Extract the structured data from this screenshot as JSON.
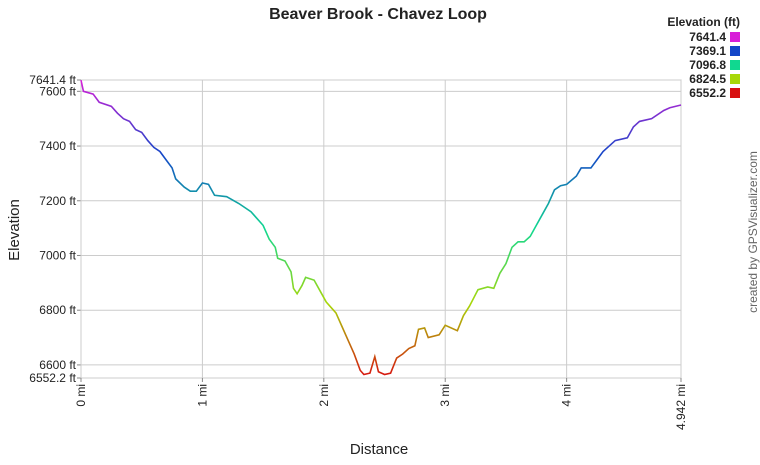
{
  "chart_data": {
    "type": "line",
    "title": "Beaver Brook - Chavez Loop",
    "x_label": "Distance",
    "y_label": "Elevation",
    "credit": "created by GPSVisualizer.com",
    "legend": {
      "title": "Elevation (ft)",
      "position": "top-right",
      "entries": [
        {
          "value": 7641.4,
          "color": "#d81ed8"
        },
        {
          "value": 7369.1,
          "color": "#1446c8"
        },
        {
          "value": 7096.8,
          "color": "#10d890"
        },
        {
          "value": 6824.5,
          "color": "#a8d808"
        },
        {
          "value": 6552.2,
          "color": "#d81010"
        }
      ]
    },
    "grid": true,
    "xlim": [
      0,
      4.942
    ],
    "ylim": [
      6552.2,
      7641.4
    ],
    "xticks": [
      {
        "value": 0,
        "label": "0 mi"
      },
      {
        "value": 1,
        "label": "1 mi"
      },
      {
        "value": 2,
        "label": "2 mi"
      },
      {
        "value": 3,
        "label": "3 mi"
      },
      {
        "value": 4,
        "label": "4 mi"
      },
      {
        "value": 4.942,
        "label": "4.942 mi"
      }
    ],
    "yticks": [
      {
        "value": 6552.2,
        "label": "6552.2 ft"
      },
      {
        "value": 6600,
        "label": "6600 ft"
      },
      {
        "value": 6800,
        "label": "6800 ft"
      },
      {
        "value": 7000,
        "label": "7000 ft"
      },
      {
        "value": 7200,
        "label": "7200 ft"
      },
      {
        "value": 7400,
        "label": "7400 ft"
      },
      {
        "value": 7600,
        "label": "7600 ft"
      },
      {
        "value": 7641.4,
        "label": "7641.4 ft"
      }
    ],
    "x": [
      0,
      0.02,
      0.1,
      0.15,
      0.25,
      0.3,
      0.35,
      0.4,
      0.45,
      0.5,
      0.55,
      0.6,
      0.65,
      0.7,
      0.75,
      0.78,
      0.85,
      0.9,
      0.95,
      1.0,
      1.05,
      1.1,
      1.2,
      1.3,
      1.4,
      1.5,
      1.55,
      1.6,
      1.62,
      1.68,
      1.73,
      1.75,
      1.78,
      1.82,
      1.85,
      1.92,
      1.97,
      2.02,
      2.1,
      2.15,
      2.2,
      2.25,
      2.3,
      2.33,
      2.38,
      2.42,
      2.45,
      2.5,
      2.55,
      2.6,
      2.65,
      2.7,
      2.75,
      2.78,
      2.83,
      2.86,
      2.95,
      3.0,
      3.1,
      3.15,
      3.2,
      3.27,
      3.35,
      3.4,
      3.45,
      3.5,
      3.55,
      3.6,
      3.65,
      3.7,
      3.75,
      3.8,
      3.85,
      3.9,
      3.95,
      4.0,
      4.08,
      4.12,
      4.2,
      4.25,
      4.3,
      4.35,
      4.4,
      4.5,
      4.55,
      4.6,
      4.7,
      4.8,
      4.85,
      4.942
    ],
    "values": [
      7641,
      7600,
      7590,
      7560,
      7545,
      7520,
      7500,
      7490,
      7460,
      7450,
      7420,
      7395,
      7380,
      7350,
      7320,
      7280,
      7250,
      7235,
      7235,
      7265,
      7260,
      7220,
      7215,
      7190,
      7160,
      7110,
      7060,
      7030,
      6990,
      6980,
      6940,
      6880,
      6860,
      6890,
      6920,
      6910,
      6870,
      6830,
      6790,
      6740,
      6690,
      6640,
      6580,
      6565,
      6570,
      6630,
      6575,
      6565,
      6570,
      6625,
      6640,
      6660,
      6670,
      6730,
      6735,
      6700,
      6710,
      6745,
      6725,
      6780,
      6815,
      6875,
      6885,
      6880,
      6935,
      6970,
      7030,
      7050,
      7050,
      7070,
      7110,
      7150,
      7190,
      7240,
      7255,
      7260,
      7290,
      7320,
      7320,
      7350,
      7380,
      7400,
      7420,
      7430,
      7470,
      7490,
      7500,
      7530,
      7540,
      7550
    ]
  }
}
